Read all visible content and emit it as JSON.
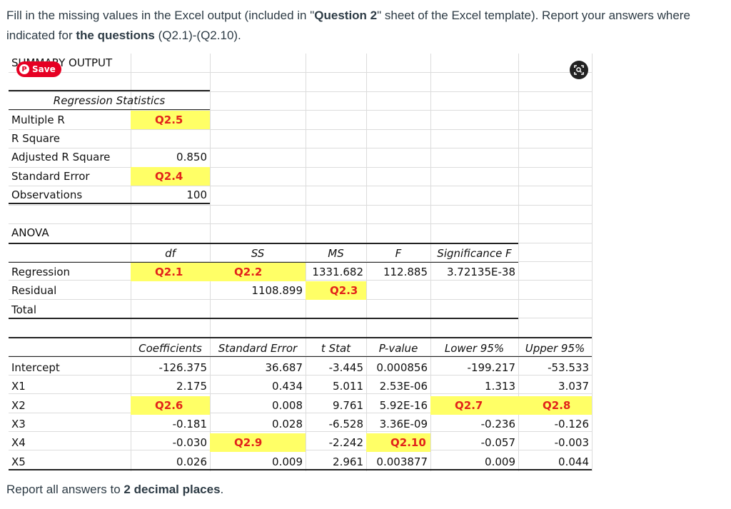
{
  "intro": {
    "line1_pre": "Fill in the missing values in the Excel output (included in \"",
    "line1_bold": "Question 2",
    "line1_post": "\" sheet of the Excel template). Report your answers where",
    "line2_pre": "indicated for ",
    "line2_bold": "the questions",
    "line2_post": " (Q2.1)-(Q2.10)."
  },
  "save_button": {
    "label": "Save",
    "icon": "pinterest-icon"
  },
  "visual_search": {
    "icon": "lens-icon"
  },
  "sheet": {
    "summary_title": "SUMMARY OUTPUT",
    "reg_stats": {
      "header": "Regression Statistics",
      "rows": [
        {
          "label": "Multiple R",
          "value": "Q2.5"
        },
        {
          "label": "R Square",
          "value": ""
        },
        {
          "label": "Adjusted R Square",
          "value": "0.850"
        },
        {
          "label": "Standard Error",
          "value": "Q2.4"
        },
        {
          "label": "Observations",
          "value": "100"
        }
      ]
    },
    "anova": {
      "title": "ANOVA",
      "headers": [
        "df",
        "SS",
        "MS",
        "F",
        "Significance F"
      ],
      "rows": [
        {
          "label": "Regression",
          "df": "Q2.1",
          "ss": "Q2.2",
          "ms": "1331.682",
          "f": "112.885",
          "sig": "3.72135E-38"
        },
        {
          "label": "Residual",
          "df": "",
          "ss": "1108.899",
          "ms": "Q2.3",
          "f": "",
          "sig": ""
        },
        {
          "label": "Total",
          "df": "",
          "ss": "",
          "ms": "",
          "f": "",
          "sig": ""
        }
      ]
    },
    "coef": {
      "headers": [
        "Coefficients",
        "Standard Error",
        "t Stat",
        "P-value",
        "Lower 95%",
        "Upper 95%"
      ],
      "rows": [
        {
          "label": "Intercept",
          "coef": "-126.375",
          "se": "36.687",
          "t": "-3.445",
          "p": "0.000856",
          "lo": "-199.217",
          "hi": "-53.533"
        },
        {
          "label": "X1",
          "coef": "2.175",
          "se": "0.434",
          "t": "5.011",
          "p": "2.53E-06",
          "lo": "1.313",
          "hi": "3.037"
        },
        {
          "label": "X2",
          "coef": "Q2.6",
          "se": "0.008",
          "t": "9.761",
          "p": "5.92E-16",
          "lo": "Q2.7",
          "hi": "Q2.8"
        },
        {
          "label": "X3",
          "coef": "-0.181",
          "se": "0.028",
          "t": "-6.528",
          "p": "3.36E-09",
          "lo": "-0.236",
          "hi": "-0.126"
        },
        {
          "label": "X4",
          "coef": "-0.030",
          "se": "Q2.9",
          "t": "-2.242",
          "p": "Q2.10",
          "lo": "-0.057",
          "hi": "-0.003"
        },
        {
          "label": "X5",
          "coef": "0.026",
          "se": "0.009",
          "t": "2.961",
          "p": "0.003877",
          "lo": "0.009",
          "hi": "0.044"
        }
      ]
    }
  },
  "report": {
    "pre": "Report all answers to ",
    "bold": "2 decimal places",
    "post": "."
  },
  "colors": {
    "highlight": "#ffff66",
    "question_text": "#e2231a",
    "save_red": "#e60023"
  }
}
